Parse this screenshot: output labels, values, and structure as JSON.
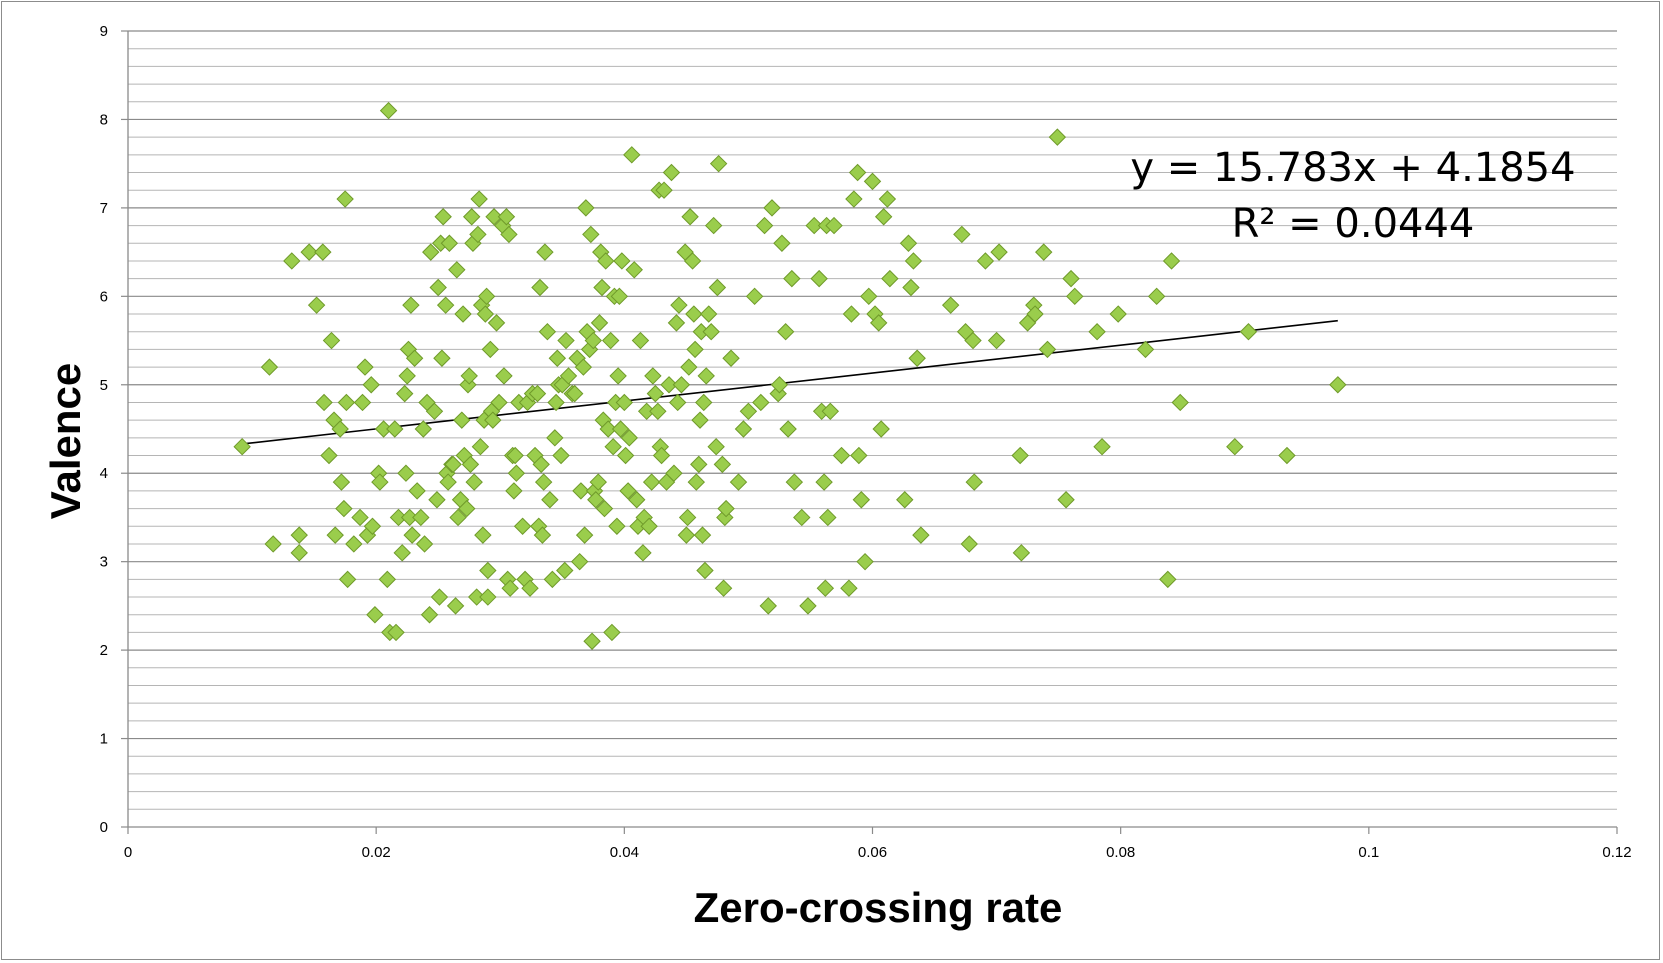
{
  "chart_data": {
    "type": "scatter",
    "title": "",
    "xlabel": "Zero-crossing rate",
    "ylabel": "Valence",
    "xlim": [
      0,
      0.12
    ],
    "ylim": [
      0,
      9
    ],
    "x_ticks": [
      0,
      0.02,
      0.04,
      0.06,
      0.08,
      0.1,
      0.12
    ],
    "x_tick_labels": [
      "0",
      "0.02",
      "0.04",
      "0.06",
      "0.08",
      "0.1",
      "0.12"
    ],
    "y_ticks": [
      0,
      1,
      2,
      3,
      4,
      5,
      6,
      7,
      8,
      9
    ],
    "y_tick_labels": [
      "0",
      "1",
      "2",
      "3",
      "4",
      "5",
      "6",
      "7",
      "8",
      "9"
    ],
    "y_minor_gridlines_per_unit": 5,
    "grid": true,
    "marker": "diamond",
    "marker_color": "#9acd4c",
    "marker_edge_color": "#6f9a2a",
    "trendline": {
      "type": "linear",
      "slope": 15.783,
      "intercept": 4.1854,
      "x_range": [
        0.0092,
        0.0975
      ],
      "equation_label": "y = 15.783x + 4.1854",
      "r2_label": "R² = 0.0444"
    },
    "points": [
      [
        0.0092,
        4.3
      ],
      [
        0.0114,
        5.2
      ],
      [
        0.0117,
        3.2
      ],
      [
        0.0132,
        6.4
      ],
      [
        0.0138,
        3.3
      ],
      [
        0.0138,
        3.1
      ],
      [
        0.0146,
        6.5
      ],
      [
        0.0152,
        5.9
      ],
      [
        0.0157,
        6.5
      ],
      [
        0.0158,
        4.8
      ],
      [
        0.0162,
        4.2
      ],
      [
        0.0164,
        5.5
      ],
      [
        0.0166,
        4.6
      ],
      [
        0.0167,
        3.3
      ],
      [
        0.0171,
        4.5
      ],
      [
        0.0172,
        3.9
      ],
      [
        0.0174,
        3.6
      ],
      [
        0.0175,
        7.1
      ],
      [
        0.0176,
        4.8
      ],
      [
        0.0177,
        2.8
      ],
      [
        0.0182,
        3.2
      ],
      [
        0.0187,
        3.5
      ],
      [
        0.0189,
        4.8
      ],
      [
        0.0191,
        5.2
      ],
      [
        0.0193,
        3.3
      ],
      [
        0.0196,
        5.0
      ],
      [
        0.0197,
        3.4
      ],
      [
        0.0199,
        2.4
      ],
      [
        0.0202,
        4.0
      ],
      [
        0.0203,
        3.9
      ],
      [
        0.0206,
        4.5
      ],
      [
        0.0209,
        2.8
      ],
      [
        0.021,
        8.1
      ],
      [
        0.0211,
        2.2
      ],
      [
        0.0215,
        4.5
      ],
      [
        0.0216,
        2.2
      ],
      [
        0.0218,
        3.5
      ],
      [
        0.0221,
        3.1
      ],
      [
        0.0223,
        4.9
      ],
      [
        0.0224,
        4.0
      ],
      [
        0.0225,
        5.1
      ],
      [
        0.0226,
        5.4
      ],
      [
        0.0227,
        3.5
      ],
      [
        0.0228,
        5.9
      ],
      [
        0.0229,
        3.3
      ],
      [
        0.0231,
        5.3
      ],
      [
        0.0233,
        3.8
      ],
      [
        0.0236,
        3.5
      ],
      [
        0.0238,
        4.5
      ],
      [
        0.0239,
        3.2
      ],
      [
        0.0241,
        4.8
      ],
      [
        0.0243,
        2.4
      ],
      [
        0.0244,
        6.5
      ],
      [
        0.0247,
        4.7
      ],
      [
        0.0249,
        3.7
      ],
      [
        0.025,
        6.1
      ],
      [
        0.0251,
        2.6
      ],
      [
        0.0252,
        6.6
      ],
      [
        0.0253,
        5.3
      ],
      [
        0.0254,
        6.9
      ],
      [
        0.0256,
        5.9
      ],
      [
        0.0257,
        4.0
      ],
      [
        0.0258,
        3.9
      ],
      [
        0.0259,
        6.6
      ],
      [
        0.0261,
        4.1
      ],
      [
        0.0262,
        4.1
      ],
      [
        0.0264,
        2.5
      ],
      [
        0.0265,
        6.3
      ],
      [
        0.0266,
        3.5
      ],
      [
        0.0268,
        3.7
      ],
      [
        0.0269,
        4.6
      ],
      [
        0.027,
        5.8
      ],
      [
        0.0271,
        4.2
      ],
      [
        0.0273,
        3.6
      ],
      [
        0.0274,
        5.0
      ],
      [
        0.0275,
        5.1
      ],
      [
        0.0276,
        4.1
      ],
      [
        0.0277,
        6.9
      ],
      [
        0.0278,
        6.6
      ],
      [
        0.0279,
        3.9
      ],
      [
        0.0281,
        2.6
      ],
      [
        0.0282,
        6.7
      ],
      [
        0.0283,
        7.1
      ],
      [
        0.0284,
        4.3
      ],
      [
        0.0285,
        5.9
      ],
      [
        0.0286,
        3.3
      ],
      [
        0.0287,
        4.6
      ],
      [
        0.0288,
        5.8
      ],
      [
        0.0289,
        6.0
      ],
      [
        0.029,
        2.9
      ],
      [
        0.029,
        2.6
      ],
      [
        0.0292,
        5.4
      ],
      [
        0.0293,
        4.7
      ],
      [
        0.0294,
        4.6
      ],
      [
        0.0295,
        6.9
      ],
      [
        0.0297,
        5.7
      ],
      [
        0.0299,
        4.8
      ],
      [
        0.0302,
        6.8
      ],
      [
        0.0303,
        5.1
      ],
      [
        0.0305,
        6.9
      ],
      [
        0.0306,
        2.8
      ],
      [
        0.0307,
        6.7
      ],
      [
        0.0308,
        2.7
      ],
      [
        0.031,
        4.2
      ],
      [
        0.0311,
        3.8
      ],
      [
        0.0312,
        4.2
      ],
      [
        0.0313,
        4.0
      ],
      [
        0.0315,
        4.8
      ],
      [
        0.0318,
        3.4
      ],
      [
        0.032,
        2.8
      ],
      [
        0.0322,
        4.8
      ],
      [
        0.0324,
        2.7
      ],
      [
        0.0326,
        4.9
      ],
      [
        0.0328,
        4.2
      ],
      [
        0.033,
        4.9
      ],
      [
        0.0331,
        3.4
      ],
      [
        0.0332,
        6.1
      ],
      [
        0.0333,
        4.1
      ],
      [
        0.0334,
        3.3
      ],
      [
        0.0335,
        3.9
      ],
      [
        0.0336,
        6.5
      ],
      [
        0.0338,
        5.6
      ],
      [
        0.034,
        3.7
      ],
      [
        0.0342,
        2.8
      ],
      [
        0.0344,
        4.4
      ],
      [
        0.0345,
        4.8
      ],
      [
        0.0346,
        5.3
      ],
      [
        0.0347,
        5.0
      ],
      [
        0.0349,
        4.2
      ],
      [
        0.035,
        5.0
      ],
      [
        0.0352,
        2.9
      ],
      [
        0.0353,
        5.5
      ],
      [
        0.0355,
        5.1
      ],
      [
        0.0358,
        4.9
      ],
      [
        0.036,
        4.9
      ],
      [
        0.0362,
        5.3
      ],
      [
        0.0364,
        3.0
      ],
      [
        0.0365,
        3.8
      ],
      [
        0.0367,
        5.2
      ],
      [
        0.0368,
        3.3
      ],
      [
        0.0369,
        7.0
      ],
      [
        0.037,
        5.6
      ],
      [
        0.0372,
        5.4
      ],
      [
        0.0373,
        6.7
      ],
      [
        0.0374,
        2.1
      ],
      [
        0.0375,
        5.5
      ],
      [
        0.0376,
        3.8
      ],
      [
        0.0377,
        3.7
      ],
      [
        0.0379,
        3.9
      ],
      [
        0.038,
        5.7
      ],
      [
        0.0381,
        6.5
      ],
      [
        0.0382,
        6.1
      ],
      [
        0.0383,
        4.6
      ],
      [
        0.0384,
        3.6
      ],
      [
        0.0385,
        6.4
      ],
      [
        0.0387,
        4.5
      ],
      [
        0.0389,
        5.5
      ],
      [
        0.039,
        2.2
      ],
      [
        0.0391,
        4.3
      ],
      [
        0.0392,
        6.0
      ],
      [
        0.0393,
        4.8
      ],
      [
        0.0394,
        3.4
      ],
      [
        0.0395,
        5.1
      ],
      [
        0.0396,
        6.0
      ],
      [
        0.0397,
        4.5
      ],
      [
        0.0398,
        6.4
      ],
      [
        0.04,
        4.8
      ],
      [
        0.0401,
        4.2
      ],
      [
        0.0403,
        3.8
      ],
      [
        0.0404,
        4.4
      ],
      [
        0.0406,
        7.6
      ],
      [
        0.0408,
        6.3
      ],
      [
        0.041,
        3.7
      ],
      [
        0.0411,
        3.4
      ],
      [
        0.0413,
        5.5
      ],
      [
        0.0415,
        3.1
      ],
      [
        0.0416,
        3.5
      ],
      [
        0.0418,
        4.7
      ],
      [
        0.042,
        3.4
      ],
      [
        0.0422,
        3.9
      ],
      [
        0.0423,
        5.1
      ],
      [
        0.0425,
        4.9
      ],
      [
        0.0427,
        4.7
      ],
      [
        0.0428,
        7.2
      ],
      [
        0.0429,
        4.3
      ],
      [
        0.043,
        4.2
      ],
      [
        0.0432,
        7.2
      ],
      [
        0.0434,
        3.9
      ],
      [
        0.0436,
        5.0
      ],
      [
        0.0438,
        7.4
      ],
      [
        0.044,
        4.0
      ],
      [
        0.0442,
        5.7
      ],
      [
        0.0443,
        4.8
      ],
      [
        0.0444,
        5.9
      ],
      [
        0.0446,
        5.0
      ],
      [
        0.0449,
        6.5
      ],
      [
        0.045,
        3.3
      ],
      [
        0.0451,
        3.5
      ],
      [
        0.0452,
        5.2
      ],
      [
        0.0453,
        6.9
      ],
      [
        0.0455,
        6.4
      ],
      [
        0.0456,
        5.8
      ],
      [
        0.0457,
        5.4
      ],
      [
        0.0458,
        3.9
      ],
      [
        0.046,
        4.1
      ],
      [
        0.0461,
        4.6
      ],
      [
        0.0462,
        5.6
      ],
      [
        0.0463,
        3.3
      ],
      [
        0.0464,
        4.8
      ],
      [
        0.0465,
        2.9
      ],
      [
        0.0466,
        5.1
      ],
      [
        0.0468,
        5.8
      ],
      [
        0.047,
        5.6
      ],
      [
        0.0472,
        6.8
      ],
      [
        0.0474,
        4.3
      ],
      [
        0.0475,
        6.1
      ],
      [
        0.0476,
        7.5
      ],
      [
        0.0479,
        4.1
      ],
      [
        0.048,
        2.7
      ],
      [
        0.0481,
        3.5
      ],
      [
        0.0482,
        3.6
      ],
      [
        0.0486,
        5.3
      ],
      [
        0.0492,
        3.9
      ],
      [
        0.0496,
        4.5
      ],
      [
        0.05,
        4.7
      ],
      [
        0.0505,
        6.0
      ],
      [
        0.051,
        4.8
      ],
      [
        0.0513,
        6.8
      ],
      [
        0.0516,
        2.5
      ],
      [
        0.0519,
        7.0
      ],
      [
        0.0524,
        4.9
      ],
      [
        0.0525,
        5.0
      ],
      [
        0.0527,
        6.6
      ],
      [
        0.053,
        5.6
      ],
      [
        0.0532,
        4.5
      ],
      [
        0.0535,
        6.2
      ],
      [
        0.0537,
        3.9
      ],
      [
        0.0543,
        3.5
      ],
      [
        0.0548,
        2.5
      ],
      [
        0.0553,
        6.8
      ],
      [
        0.0557,
        6.2
      ],
      [
        0.0559,
        4.7
      ],
      [
        0.0561,
        3.9
      ],
      [
        0.0562,
        2.7
      ],
      [
        0.0563,
        6.8
      ],
      [
        0.0564,
        3.5
      ],
      [
        0.0566,
        4.7
      ],
      [
        0.0569,
        6.8
      ],
      [
        0.0575,
        4.2
      ],
      [
        0.0581,
        2.7
      ],
      [
        0.0583,
        5.8
      ],
      [
        0.0585,
        7.1
      ],
      [
        0.0588,
        7.4
      ],
      [
        0.0589,
        4.2
      ],
      [
        0.0591,
        3.7
      ],
      [
        0.0594,
        3.0
      ],
      [
        0.0597,
        6.0
      ],
      [
        0.06,
        7.3
      ],
      [
        0.0602,
        5.8
      ],
      [
        0.0605,
        5.7
      ],
      [
        0.0607,
        4.5
      ],
      [
        0.0609,
        6.9
      ],
      [
        0.0612,
        7.1
      ],
      [
        0.0614,
        6.2
      ],
      [
        0.0626,
        3.7
      ],
      [
        0.0629,
        6.6
      ],
      [
        0.0631,
        6.1
      ],
      [
        0.0633,
        6.4
      ],
      [
        0.0636,
        5.3
      ],
      [
        0.0639,
        3.3
      ],
      [
        0.0663,
        5.9
      ],
      [
        0.0672,
        6.7
      ],
      [
        0.0675,
        5.6
      ],
      [
        0.0678,
        3.2
      ],
      [
        0.0681,
        5.5
      ],
      [
        0.0682,
        3.9
      ],
      [
        0.0691,
        6.4
      ],
      [
        0.07,
        5.5
      ],
      [
        0.0702,
        6.5
      ],
      [
        0.0719,
        4.2
      ],
      [
        0.072,
        3.1
      ],
      [
        0.0725,
        5.7
      ],
      [
        0.073,
        5.9
      ],
      [
        0.0731,
        5.8
      ],
      [
        0.0738,
        6.5
      ],
      [
        0.0741,
        5.4
      ],
      [
        0.0749,
        7.8
      ],
      [
        0.0756,
        3.7
      ],
      [
        0.076,
        6.2
      ],
      [
        0.0763,
        6.0
      ],
      [
        0.0785,
        4.3
      ],
      [
        0.0798,
        5.8
      ],
      [
        0.0781,
        5.6
      ],
      [
        0.082,
        5.4
      ],
      [
        0.0829,
        6.0
      ],
      [
        0.0838,
        2.8
      ],
      [
        0.0841,
        6.4
      ],
      [
        0.0848,
        4.8
      ],
      [
        0.0892,
        4.3
      ],
      [
        0.0903,
        5.6
      ],
      [
        0.0934,
        4.2
      ],
      [
        0.0975,
        5.0
      ]
    ]
  }
}
